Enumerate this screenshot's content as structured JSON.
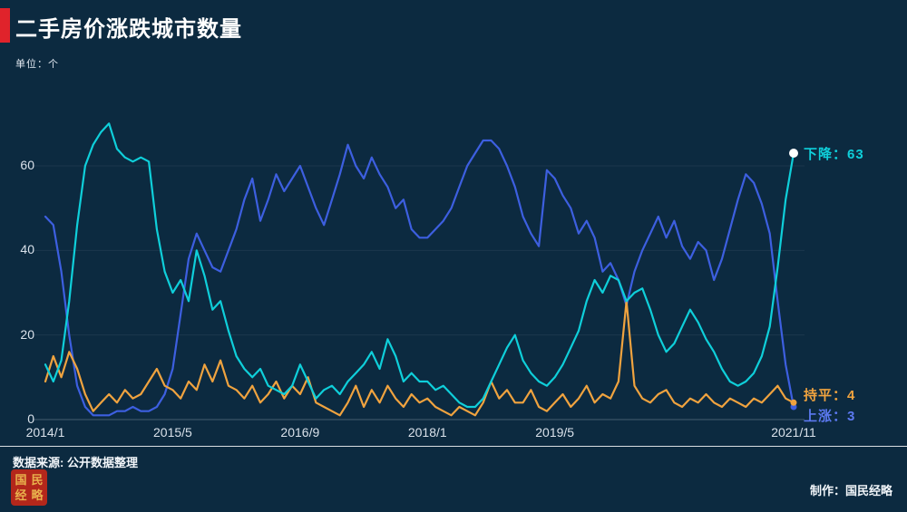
{
  "title": "二手房价涨跌城市数量",
  "unit": "单位：个",
  "footer": {
    "source": "数据来源: 公开数据整理",
    "credit": "制作：国民经略",
    "seal_chars": [
      "国",
      "民",
      "经",
      "略"
    ]
  },
  "colors": {
    "background": "#0c2a40",
    "title_accent_red": "#e0232b",
    "rising_blue": "#3d5fe0",
    "falling_cyan": "#0fcfda",
    "flat_orange": "#f0a33f",
    "axis_text": "#d9e1ea",
    "seal_red": "#b3271b",
    "seal_gold": "#e9b34d"
  },
  "chart_data": {
    "type": "line",
    "title": "二手房价涨跌城市数量",
    "ylabel": "单位：个",
    "months": 95,
    "x_range": [
      "2014/1",
      "2021/11"
    ],
    "ylim": [
      0,
      72
    ],
    "grid": "faint-horizontal",
    "legend_position": "line-end-labels-right",
    "xticks": [
      {
        "m": 0,
        "label": "2014/1"
      },
      {
        "m": 16,
        "label": "2015/5"
      },
      {
        "m": 32,
        "label": "2016/9"
      },
      {
        "m": 48,
        "label": "2018/1"
      },
      {
        "m": 64,
        "label": "2019/5"
      },
      {
        "m": 94,
        "label": "2021/11"
      }
    ],
    "yticks": [
      {
        "v": 0,
        "label": "0"
      },
      {
        "v": 20,
        "label": "20"
      },
      {
        "v": 40,
        "label": "40"
      },
      {
        "v": 60,
        "label": "60"
      }
    ],
    "series": [
      {
        "key": "rising",
        "name": "上涨",
        "end_value": 3,
        "end_label": "上涨：3",
        "color": "#3d5fe0",
        "label_color": "#5c79f0",
        "dot_color": "#3d5fe0",
        "dot_r": 3.5,
        "label_dy": 9,
        "values": [
          48,
          46,
          35,
          20,
          8,
          3,
          1,
          1,
          1,
          2,
          2,
          3,
          2,
          2,
          3,
          6,
          12,
          25,
          38,
          44,
          40,
          36,
          35,
          40,
          45,
          52,
          57,
          47,
          52,
          58,
          54,
          57,
          60,
          55,
          50,
          46,
          52,
          58,
          65,
          60,
          57,
          62,
          58,
          55,
          50,
          52,
          45,
          43,
          43,
          45,
          47,
          50,
          55,
          60,
          63,
          66,
          66,
          64,
          60,
          55,
          48,
          44,
          41,
          59,
          57,
          53,
          50,
          44,
          47,
          43,
          35,
          37,
          33,
          27,
          35,
          40,
          44,
          48,
          43,
          47,
          41,
          38,
          42,
          40,
          33,
          38,
          45,
          52,
          58,
          56,
          51,
          44,
          28,
          13,
          3
        ]
      },
      {
        "key": "flat",
        "name": "持平",
        "end_value": 4,
        "end_label": "持平：4",
        "color": "#f0a33f",
        "label_color": "#f0a33f",
        "dot_color": "#f0a33f",
        "dot_r": 3.5,
        "label_dy": -9,
        "values": [
          9,
          15,
          10,
          16,
          12,
          6,
          2,
          4,
          6,
          4,
          7,
          5,
          6,
          9,
          12,
          8,
          7,
          5,
          9,
          7,
          13,
          9,
          14,
          8,
          7,
          5,
          8,
          4,
          6,
          9,
          5,
          8,
          6,
          10,
          4,
          3,
          2,
          1,
          4,
          8,
          3,
          7,
          4,
          8,
          5,
          3,
          6,
          4,
          5,
          3,
          2,
          1,
          3,
          2,
          1,
          4,
          9,
          5,
          7,
          4,
          4,
          7,
          3,
          2,
          4,
          6,
          3,
          5,
          8,
          4,
          6,
          5,
          9,
          28,
          8,
          5,
          4,
          6,
          7,
          4,
          3,
          5,
          4,
          6,
          4,
          3,
          5,
          4,
          3,
          5,
          4,
          6,
          8,
          5,
          4
        ]
      },
      {
        "key": "falling",
        "name": "下降",
        "end_value": 63,
        "end_label": "下降：63",
        "color": "#0fcfda",
        "label_color": "#0fcfda",
        "dot_color": "#ffffff",
        "dot_r": 5,
        "label_dy": 0,
        "values": [
          13,
          9,
          14,
          28,
          46,
          60,
          65,
          68,
          70,
          64,
          62,
          61,
          62,
          61,
          45,
          35,
          30,
          33,
          28,
          40,
          34,
          26,
          28,
          21,
          15,
          12,
          10,
          12,
          8,
          7,
          6,
          8,
          13,
          9,
          5,
          7,
          8,
          6,
          9,
          11,
          13,
          16,
          12,
          19,
          15,
          9,
          11,
          9,
          9,
          7,
          8,
          6,
          4,
          3,
          3,
          5,
          9,
          13,
          17,
          20,
          14,
          11,
          9,
          8,
          10,
          13,
          17,
          21,
          28,
          33,
          30,
          34,
          33,
          28,
          30,
          31,
          26,
          20,
          16,
          18,
          22,
          26,
          23,
          19,
          16,
          12,
          9,
          8,
          9,
          11,
          15,
          22,
          36,
          52,
          63
        ]
      }
    ]
  }
}
